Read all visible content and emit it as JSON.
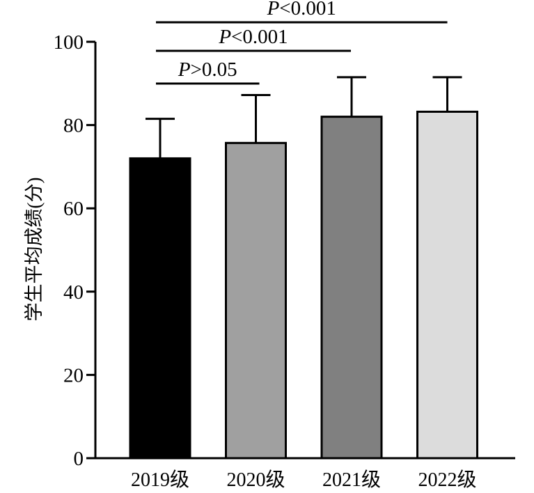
{
  "chart_data": {
    "type": "bar",
    "categories": [
      "2019级",
      "2020级",
      "2021级",
      "2022级"
    ],
    "values": [
      72,
      75.7,
      82,
      83.2
    ],
    "error_upper": [
      81.5,
      87.2,
      91.5,
      91.5
    ],
    "bar_colors": [
      "#000000",
      "#a0a0a0",
      "#808080",
      "#dcdcdc"
    ],
    "ylabel": "学生平均成绩(分)",
    "ylim": [
      0,
      100
    ],
    "yticks": [
      0,
      20,
      40,
      60,
      80,
      100
    ],
    "grid": false,
    "significance": [
      {
        "from": 0,
        "to": 1,
        "label_prefix": "P",
        "label_rest": ">0.05",
        "label": "P>0.05"
      },
      {
        "from": 0,
        "to": 2,
        "label_prefix": "P",
        "label_rest": "<0.001",
        "label": "P<0.001"
      },
      {
        "from": 0,
        "to": 3,
        "label_prefix": "P",
        "label_rest": "<0.001",
        "label": "P<0.001"
      }
    ]
  }
}
